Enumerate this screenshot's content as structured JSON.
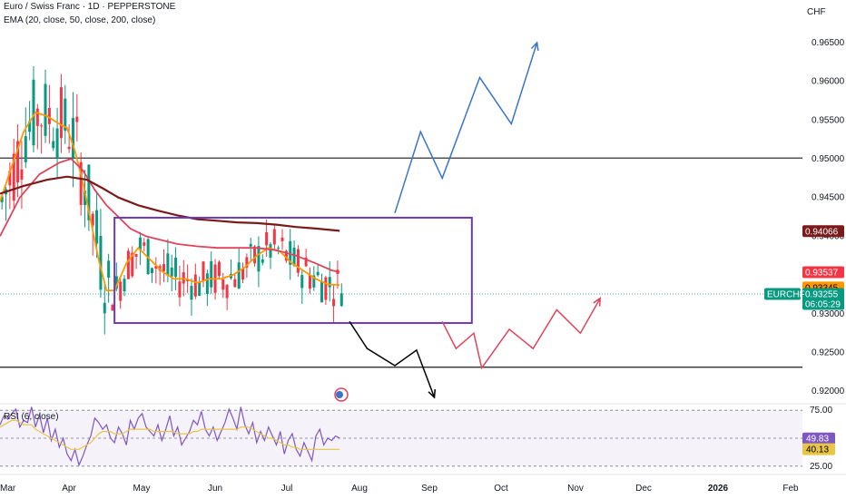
{
  "header": {
    "symbol_line": "Euro / Swiss Franc · 1D · PEPPERSTONE",
    "indicator_line": "EMA (20, close, 50, close, 200, close)",
    "currency": "CHF"
  },
  "rsi_panel": {
    "label": "RSI (6, close)"
  },
  "colors": {
    "up": "#089981",
    "down": "#f23645",
    "ema20": "#ff9800",
    "ema50": "#e0435a",
    "ema200": "#7a1a1a",
    "box": "#6a3ab6",
    "arrow_blue": "#3a74c9",
    "arrow_red": "#e0435a",
    "arrow_black": "#000000",
    "rsi": "#7e57c2",
    "rsi_ma": "#e8c547"
  },
  "chart_data": [
    {
      "type": "candlestick",
      "symbol": "EURCHF",
      "timeframe": "1D",
      "x_labels": [
        "Mar",
        "Apr",
        "May",
        "Jun",
        "Jul",
        "Aug",
        "Sep",
        "Oct",
        "Nov",
        "Dec",
        "2026",
        "Feb"
      ],
      "y_ticks": [
        0.92,
        0.925,
        0.93,
        0.935,
        0.94,
        0.945,
        0.95,
        0.955,
        0.96,
        0.965
      ],
      "y_tick_labels": [
        "0.92000",
        "0.92500",
        "0.93000",
        "0.93500",
        "0.94000",
        "0.94500",
        "0.95000",
        "0.95500",
        "0.96000",
        "0.96500"
      ],
      "ylim": [
        0.9185,
        0.9705
      ],
      "horizontal_lines": [
        0.9501,
        0.9231
      ],
      "range_box": {
        "top": 0.9424,
        "bottom": 0.9288
      },
      "ema_lines": [
        {
          "name": "EMA 20",
          "color": "#ff9800",
          "points": [
            [
              0,
              0.9445
            ],
            [
              3,
              0.949
            ],
            [
              6,
              0.9535
            ],
            [
              9,
              0.956
            ],
            [
              12,
              0.9555
            ],
            [
              15,
              0.9545
            ],
            [
              17,
              0.954
            ],
            [
              19,
              0.951
            ],
            [
              21,
              0.947
            ],
            [
              23,
              0.942
            ],
            [
              25,
              0.937
            ],
            [
              27,
              0.933
            ],
            [
              29,
              0.933
            ],
            [
              32,
              0.9365
            ],
            [
              35,
              0.9385
            ],
            [
              38,
              0.937
            ],
            [
              41,
              0.9355
            ],
            [
              44,
              0.9345
            ],
            [
              47,
              0.9345
            ],
            [
              50,
              0.934
            ],
            [
              53,
              0.9345
            ],
            [
              56,
              0.9345
            ],
            [
              59,
              0.935
            ],
            [
              62,
              0.936
            ],
            [
              65,
              0.9375
            ],
            [
              68,
              0.9385
            ],
            [
              71,
              0.938
            ],
            [
              74,
              0.9365
            ],
            [
              77,
              0.9355
            ],
            [
              80,
              0.9345
            ],
            [
              83,
              0.9338
            ],
            [
              86,
              0.9337
            ]
          ]
        },
        {
          "name": "EMA 50",
          "color": "#e0435a",
          "points": [
            [
              0,
              0.94
            ],
            [
              5,
              0.945
            ],
            [
              10,
              0.948
            ],
            [
              15,
              0.9495
            ],
            [
              18,
              0.95
            ],
            [
              21,
              0.9485
            ],
            [
              24,
              0.946
            ],
            [
              27,
              0.944
            ],
            [
              30,
              0.9425
            ],
            [
              33,
              0.941
            ],
            [
              37,
              0.94
            ],
            [
              41,
              0.9395
            ],
            [
              45,
              0.939
            ],
            [
              50,
              0.9387
            ],
            [
              55,
              0.9385
            ],
            [
              60,
              0.9385
            ],
            [
              65,
              0.9385
            ],
            [
              70,
              0.9382
            ],
            [
              75,
              0.9375
            ],
            [
              80,
              0.9365
            ],
            [
              84,
              0.9356
            ],
            [
              86,
              0.9354
            ]
          ]
        },
        {
          "name": "EMA 200",
          "color": "#7a1a1a",
          "points": [
            [
              0,
              0.9455
            ],
            [
              6,
              0.9465
            ],
            [
              12,
              0.9473
            ],
            [
              17,
              0.9477
            ],
            [
              22,
              0.9473
            ],
            [
              26,
              0.9462
            ],
            [
              30,
              0.945
            ],
            [
              35,
              0.944
            ],
            [
              40,
              0.9433
            ],
            [
              45,
              0.9427
            ],
            [
              50,
              0.9422
            ],
            [
              55,
              0.942
            ],
            [
              60,
              0.9418
            ],
            [
              65,
              0.9417
            ],
            [
              70,
              0.9415
            ],
            [
              75,
              0.9412
            ],
            [
              80,
              0.941
            ],
            [
              86,
              0.9407
            ]
          ]
        }
      ],
      "price_badges": [
        {
          "label": "0.94066",
          "value": 0.94066,
          "bg": "#7a1a1a",
          "fg": "#ffffff"
        },
        {
          "label": "0.93537",
          "value": 0.93537,
          "bg": "#f23645",
          "fg": "#ffffff"
        },
        {
          "label": "0.93345",
          "value": 0.93345,
          "bg": "#ff9800",
          "fg": "#000000"
        },
        {
          "label": "0.93255",
          "value": 0.93255,
          "bg": "#089981",
          "fg": "#ffffff",
          "sub": "06:05:29",
          "tag": "EURCHF"
        }
      ],
      "projections": [
        {
          "name": "bullish",
          "color": "#3a74c9",
          "points": [
            [
              100,
              0.943
            ],
            [
              106.5,
              0.9535
            ],
            [
              112,
              0.9475
            ],
            [
              121.5,
              0.9605
            ],
            [
              129.5,
              0.9545
            ],
            [
              136,
              0.965
            ]
          ]
        },
        {
          "name": "bearish",
          "color": "#000000",
          "points": [
            [
              88.5,
              0.929
            ],
            [
              93,
              0.9255
            ],
            [
              100,
              0.9233
            ],
            [
              105.5,
              0.9253
            ],
            [
              110,
              0.9192
            ]
          ]
        },
        {
          "name": "range",
          "color": "#e0435a",
          "points": [
            [
              112,
              0.929
            ],
            [
              115.5,
              0.9255
            ],
            [
              120,
              0.9275
            ],
            [
              122,
              0.923
            ],
            [
              129,
              0.928
            ],
            [
              135,
              0.9255
            ],
            [
              141,
              0.9305
            ],
            [
              147,
              0.9275
            ],
            [
              152,
              0.932
            ]
          ]
        }
      ]
    },
    {
      "type": "line",
      "name": "RSI (6, close)",
      "y_ticks": [
        75,
        25
      ],
      "ylim": [
        20,
        80
      ],
      "value_badges": [
        {
          "label": "49.83",
          "value": 49.83,
          "bg": "#7e57c2",
          "fg": "#ffffff"
        },
        {
          "label": "40.13",
          "value": 40.13,
          "bg": "#e8c547",
          "fg": "#000000"
        }
      ],
      "rsi_values": [
        62,
        70,
        67,
        72,
        76,
        60,
        66,
        64,
        78,
        60,
        71,
        55,
        68,
        48,
        58,
        42,
        50,
        36,
        30,
        40,
        26,
        34,
        44,
        52,
        68,
        64,
        58,
        62,
        50,
        46,
        60,
        54,
        44,
        66,
        58,
        68,
        72,
        60,
        56,
        52,
        62,
        48,
        58,
        70,
        52,
        60,
        44,
        50,
        56,
        66,
        62,
        74,
        58,
        52,
        60,
        48,
        56,
        64,
        76,
        68,
        58,
        78,
        62,
        54,
        64,
        46,
        56,
        48,
        60,
        52,
        44,
        56,
        36,
        48,
        54,
        40,
        34,
        46,
        38,
        30,
        52,
        58,
        44,
        50,
        48,
        52,
        50
      ],
      "rsi_ma_values": [
        60,
        62,
        64,
        66,
        66,
        64,
        62,
        62,
        62,
        58,
        56,
        54,
        52,
        50,
        48,
        46,
        44,
        42,
        40,
        40,
        40,
        42,
        44,
        46,
        50,
        54,
        56,
        56,
        56,
        54,
        54,
        54,
        56,
        58,
        58,
        58,
        58,
        58,
        58,
        56,
        56,
        56,
        56,
        56,
        56,
        54,
        54,
        54,
        54,
        56,
        56,
        58,
        58,
        58,
        58,
        58,
        58,
        58,
        58,
        58,
        58,
        60,
        60,
        60,
        58,
        56,
        54,
        52,
        50,
        50,
        48,
        46,
        44,
        44,
        42,
        42,
        40,
        40,
        40,
        40,
        40,
        40,
        40,
        40,
        40,
        40,
        40
      ]
    }
  ]
}
